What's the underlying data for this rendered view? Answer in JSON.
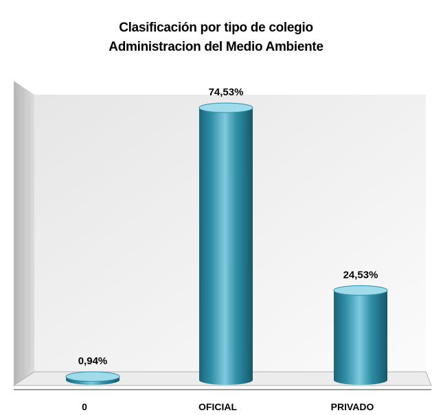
{
  "chart_data": {
    "type": "bar",
    "title": "Clasificación por tipo de colegio",
    "subtitle": "Administracion del Medio Ambiente",
    "categories": [
      "0",
      "OFICIAL",
      "PRIVADO"
    ],
    "values": [
      0.94,
      74.53,
      24.53
    ],
    "value_labels": [
      "0,94%",
      "74,53%",
      "24,53%"
    ],
    "ylim": [
      0,
      80
    ],
    "grid": false,
    "legend": "none",
    "bar_style": "3d-cylinder"
  },
  "colors": {
    "bar": "#2e8fa6",
    "bar_dark": "#1c6478",
    "bar_light": "#9fdbea",
    "wall": "#f2f2f2",
    "side_wall": "#c9c9c9",
    "floor_edge": "#b0b0b0"
  }
}
